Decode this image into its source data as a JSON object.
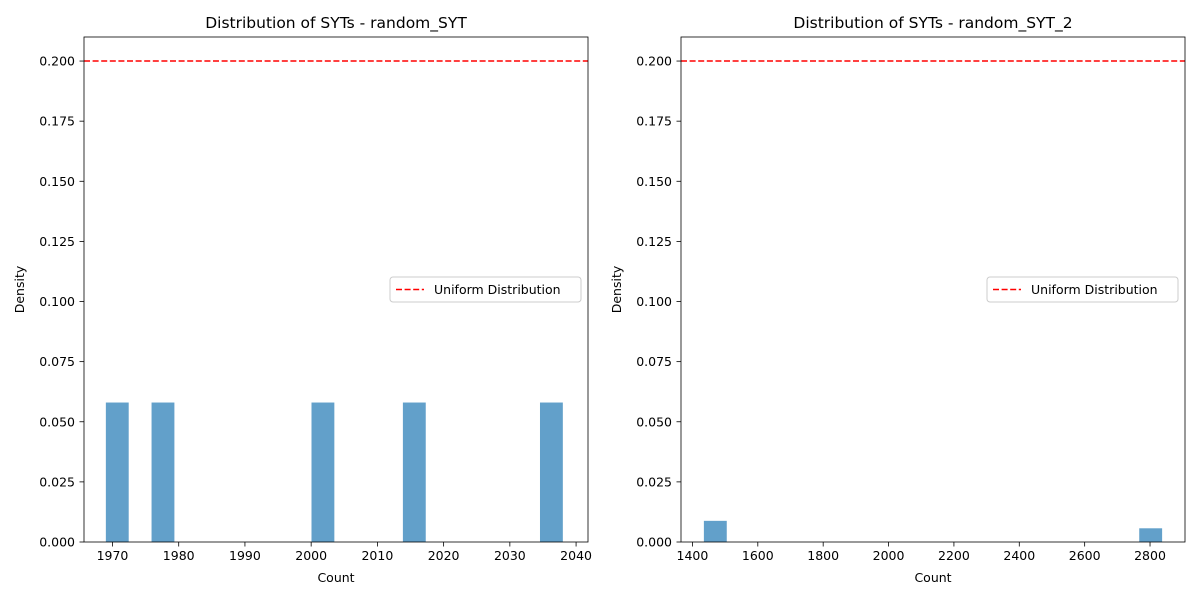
{
  "chart_data": [
    {
      "type": "bar",
      "title": "Distribution of SYTs - random_SYT",
      "xlabel": "Count",
      "ylabel": "Density",
      "xlim": [
        1965.7,
        2041.8
      ],
      "ylim": [
        0,
        0.21
      ],
      "xticks": [
        1970,
        1980,
        1990,
        2000,
        2010,
        2020,
        2030,
        2040
      ],
      "yticks": [
        0.0,
        0.025,
        0.05,
        0.075,
        0.1,
        0.125,
        0.15,
        0.175,
        0.2
      ],
      "yticklabels": [
        "0.000",
        "0.025",
        "0.050",
        "0.075",
        "0.100",
        "0.125",
        "0.150",
        "0.175",
        "0.200"
      ],
      "bars": [
        {
          "x0": 1969.0,
          "x1": 1972.45,
          "value": 0.058
        },
        {
          "x0": 1975.9,
          "x1": 1979.35,
          "value": 0.058
        },
        {
          "x0": 2000.05,
          "x1": 2003.5,
          "value": 0.058
        },
        {
          "x0": 2013.85,
          "x1": 2017.3,
          "value": 0.058
        },
        {
          "x0": 2034.55,
          "x1": 2038.0,
          "value": 0.058
        }
      ],
      "bar_color": "#62a0ca",
      "reference_line": {
        "value": 0.2,
        "label": "Uniform Distribution",
        "color": "#ff0000",
        "style": "dashed"
      },
      "legend": "center-right",
      "grid": false
    },
    {
      "type": "bar",
      "title": "Distribution of SYTs - random_SYT_2",
      "xlabel": "Count",
      "ylabel": "Density",
      "xlim": [
        1365,
        2907
      ],
      "ylim": [
        0,
        0.21
      ],
      "xticks": [
        1400,
        1600,
        1800,
        2000,
        2200,
        2400,
        2600,
        2800
      ],
      "yticks": [
        0.0,
        0.025,
        0.05,
        0.075,
        0.1,
        0.125,
        0.15,
        0.175,
        0.2
      ],
      "yticklabels": [
        "0.000",
        "0.025",
        "0.050",
        "0.075",
        "0.100",
        "0.125",
        "0.150",
        "0.175",
        "0.200"
      ],
      "bars": [
        {
          "x0": 1435,
          "x1": 1505,
          "value": 0.0088
        },
        {
          "x0": 2767,
          "x1": 2837,
          "value": 0.0057
        }
      ],
      "bar_color": "#62a0ca",
      "reference_line": {
        "value": 0.2,
        "label": "Uniform Distribution",
        "color": "#ff0000",
        "style": "dashed"
      },
      "legend": "center-right",
      "grid": false
    }
  ]
}
